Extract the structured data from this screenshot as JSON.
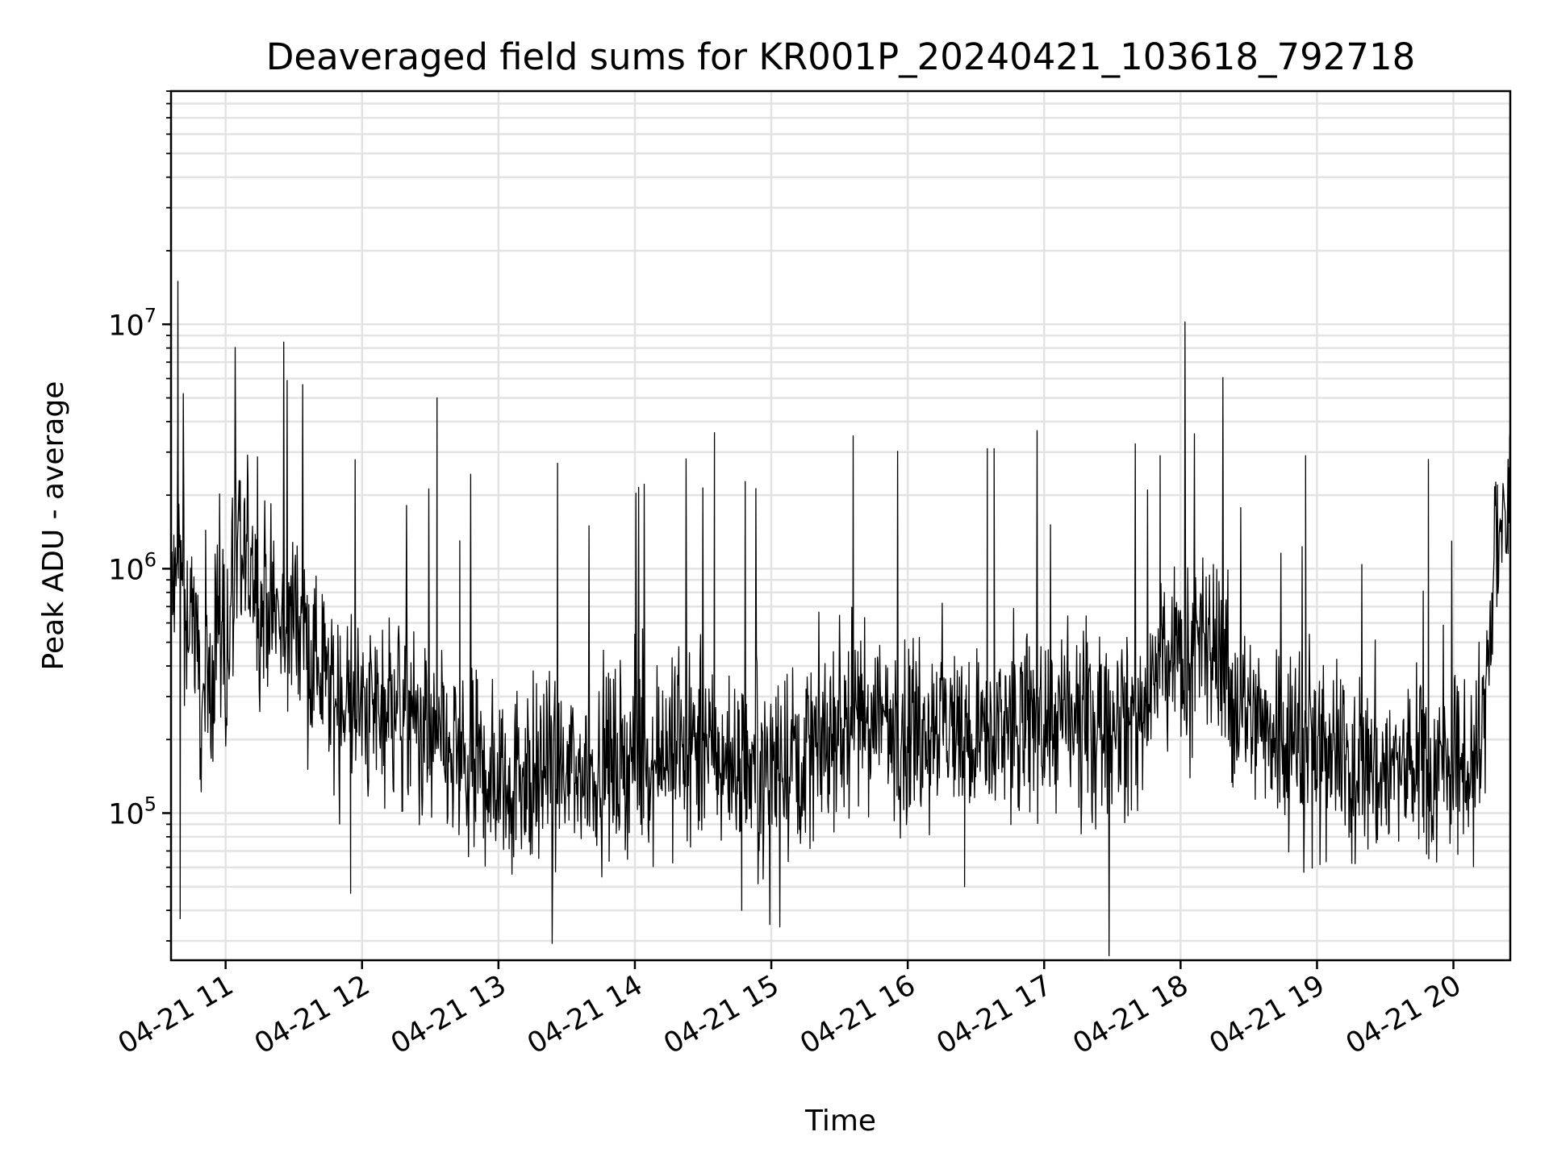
{
  "chart_data": {
    "type": "line",
    "title": "Deaveraged field sums for KR001P_20240421_103618_792718",
    "xlabel": "Time",
    "ylabel": "Peak ADU - average",
    "yscale": "log",
    "ylim": [
      25000,
      90000000
    ],
    "xlim": [
      "2024-04-21 10:36",
      "2024-04-21 20:25"
    ],
    "grid": true,
    "line_color": "#000000",
    "x_tick_labels": [
      "04-21 11",
      "04-21 12",
      "04-21 13",
      "04-21 14",
      "04-21 15",
      "04-21 16",
      "04-21 17",
      "04-21 18",
      "04-21 19",
      "04-21 20"
    ],
    "x_tick_values": [
      "2024-04-21 11:00",
      "2024-04-21 12:00",
      "2024-04-21 13:00",
      "2024-04-21 14:00",
      "2024-04-21 15:00",
      "2024-04-21 16:00",
      "2024-04-21 17:00",
      "2024-04-21 18:00",
      "2024-04-21 19:00",
      "2024-04-21 20:00"
    ],
    "y_ticks": [
      {
        "value": 100000,
        "base": "10",
        "exp": "5"
      },
      {
        "value": 1000000,
        "base": "10",
        "exp": "6"
      },
      {
        "value": 10000000,
        "base": "10",
        "exp": "7"
      }
    ],
    "series": [
      {
        "x": [
          "2024-04-21 10:36",
          "2024-04-21 10:38",
          "2024-04-21 10:40",
          "2024-04-21 10:42",
          "2024-04-21 10:45",
          "2024-04-21 10:48",
          "2024-04-21 10:50",
          "2024-04-21 10:53",
          "2024-04-21 10:56",
          "2024-04-21 11:00",
          "2024-04-21 11:05",
          "2024-04-21 11:10",
          "2024-04-21 11:15",
          "2024-04-21 11:20",
          "2024-04-21 11:25",
          "2024-04-21 11:30",
          "2024-04-21 11:40",
          "2024-04-21 11:50",
          "2024-04-21 12:00",
          "2024-04-21 12:10",
          "2024-04-21 12:20",
          "2024-04-21 12:30",
          "2024-04-21 12:35",
          "2024-04-21 12:45",
          "2024-04-21 13:00",
          "2024-04-21 13:15",
          "2024-04-21 13:30",
          "2024-04-21 13:45",
          "2024-04-21 14:00",
          "2024-04-21 14:15",
          "2024-04-21 14:30",
          "2024-04-21 14:45",
          "2024-04-21 15:00",
          "2024-04-21 15:15",
          "2024-04-21 15:30",
          "2024-04-21 15:45",
          "2024-04-21 16:00",
          "2024-04-21 16:15",
          "2024-04-21 16:30",
          "2024-04-21 16:45",
          "2024-04-21 17:00",
          "2024-04-21 17:15",
          "2024-04-21 17:30",
          "2024-04-21 17:40",
          "2024-04-21 17:45",
          "2024-04-21 17:50",
          "2024-04-21 18:00",
          "2024-04-21 18:10",
          "2024-04-21 18:18",
          "2024-04-21 18:22",
          "2024-04-21 18:30",
          "2024-04-21 18:45",
          "2024-04-21 19:00",
          "2024-04-21 19:15",
          "2024-04-21 19:30",
          "2024-04-21 19:45",
          "2024-04-21 20:00",
          "2024-04-21 20:10",
          "2024-04-21 20:13",
          "2024-04-21 20:18",
          "2024-04-21 20:25"
        ],
        "y": [
          900000,
          700000,
          1200000,
          600000,
          800000,
          400000,
          250000,
          300000,
          700000,
          500000,
          900000,
          1100000,
          700000,
          800000,
          500000,
          700000,
          400000,
          300000,
          250000,
          300000,
          250000,
          200000,
          180000,
          150000,
          140000,
          150000,
          140000,
          160000,
          170000,
          190000,
          180000,
          160000,
          170000,
          180000,
          230000,
          250000,
          220000,
          240000,
          200000,
          220000,
          240000,
          230000,
          240000,
          250000,
          230000,
          400000,
          420000,
          450000,
          500000,
          300000,
          250000,
          220000,
          180000,
          160000,
          150000,
          160000,
          150000,
          170000,
          200000,
          1200000,
          1700000
        ]
      }
    ],
    "spikes": [
      {
        "x": "2024-04-21 10:39",
        "y": 15000000
      },
      {
        "x": "2024-04-21 10:40",
        "y": 37000
      },
      {
        "x": "2024-04-21 11:55",
        "y": 47000
      },
      {
        "x": "2024-04-21 12:33",
        "y": 5000000
      },
      {
        "x": "2024-04-21 12:43",
        "y": 1300000
      },
      {
        "x": "2024-04-21 13:26",
        "y": 2700000
      },
      {
        "x": "2024-04-21 14:35",
        "y": 3600000
      },
      {
        "x": "2024-04-21 14:47",
        "y": 40000
      },
      {
        "x": "2024-04-21 15:36",
        "y": 3500000
      },
      {
        "x": "2024-04-21 16:25",
        "y": 50000
      },
      {
        "x": "2024-04-21 16:35",
        "y": 3100000
      },
      {
        "x": "2024-04-21 16:38",
        "y": 3100000
      },
      {
        "x": "2024-04-21 17:51",
        "y": 2900000
      },
      {
        "x": "2024-04-21 18:55",
        "y": 2900000
      },
      {
        "x": "2024-04-21 19:49",
        "y": 2800000
      },
      {
        "x": "2024-04-21 20:24",
        "y": 2800000
      }
    ]
  }
}
